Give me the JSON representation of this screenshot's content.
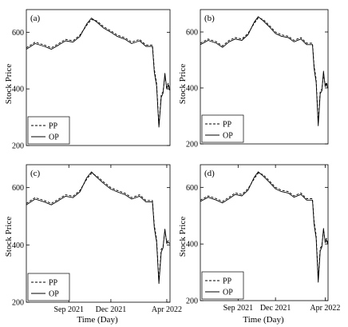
{
  "figure": {
    "ylabel": "Stock Price",
    "xlabel": "Time (Day)"
  },
  "chart_data": [
    {
      "panel": "(a)",
      "type": "line",
      "x_ticks": [],
      "y_ticks": [
        "200",
        "400",
        "600"
      ],
      "ylim": [
        200,
        680
      ],
      "legend": [
        "PP",
        "OP"
      ],
      "legend_position": "bottom-left",
      "series": [
        {
          "name": "PP",
          "style": "dashed",
          "x": [
            "2021-06-01",
            "2021-06-20",
            "2021-07-10",
            "2021-07-25",
            "2021-08-10",
            "2021-08-25",
            "2021-09-10",
            "2021-09-25",
            "2021-10-10",
            "2021-10-20",
            "2021-11-01",
            "2021-11-15",
            "2021-12-01",
            "2021-12-15",
            "2022-01-01",
            "2022-01-15",
            "2022-02-01",
            "2022-02-15",
            "2022-03-01",
            "2022-03-05",
            "2022-03-10",
            "2022-03-15",
            "2022-03-20",
            "2022-03-24",
            "2022-03-28",
            "2022-04-01",
            "2022-04-04",
            "2022-04-07"
          ],
          "y": [
            545,
            565,
            555,
            545,
            560,
            575,
            570,
            590,
            625,
            645,
            640,
            620,
            605,
            590,
            580,
            565,
            575,
            555,
            555,
            470,
            420,
            270,
            380,
            390,
            445,
            405,
            420,
            400
          ]
        },
        {
          "name": "OP",
          "style": "solid",
          "x": [
            "2021-06-01",
            "2021-06-20",
            "2021-07-10",
            "2021-07-25",
            "2021-08-10",
            "2021-08-25",
            "2021-09-10",
            "2021-09-25",
            "2021-10-10",
            "2021-10-20",
            "2021-11-01",
            "2021-11-15",
            "2021-12-01",
            "2021-12-15",
            "2022-01-01",
            "2022-01-15",
            "2022-02-01",
            "2022-02-15",
            "2022-03-01",
            "2022-03-05",
            "2022-03-10",
            "2022-03-15",
            "2022-03-20",
            "2022-03-24",
            "2022-03-28",
            "2022-04-01",
            "2022-04-04",
            "2022-04-07"
          ],
          "y": [
            540,
            560,
            550,
            540,
            555,
            570,
            565,
            585,
            630,
            650,
            635,
            615,
            600,
            585,
            575,
            560,
            570,
            550,
            550,
            460,
            410,
            265,
            370,
            385,
            455,
            400,
            415,
            395
          ]
        }
      ]
    },
    {
      "panel": "(b)",
      "type": "line",
      "x_ticks": [],
      "y_ticks": [
        "200",
        "400",
        "600"
      ],
      "ylim": [
        200,
        680
      ],
      "legend": [
        "PP",
        "OP"
      ],
      "legend_position": "bottom-left",
      "series": [
        {
          "name": "PP",
          "style": "dashed",
          "x": [
            "2021-06-01",
            "2021-06-20",
            "2021-07-10",
            "2021-07-25",
            "2021-08-10",
            "2021-08-25",
            "2021-09-10",
            "2021-09-25",
            "2021-10-10",
            "2021-10-20",
            "2021-11-01",
            "2021-11-15",
            "2021-12-01",
            "2021-12-15",
            "2022-01-01",
            "2022-01-15",
            "2022-02-01",
            "2022-02-15",
            "2022-03-01",
            "2022-03-05",
            "2022-03-10",
            "2022-03-15",
            "2022-03-20",
            "2022-03-24",
            "2022-03-28",
            "2022-04-01",
            "2022-04-04",
            "2022-04-07"
          ],
          "y": [
            560,
            575,
            565,
            550,
            570,
            580,
            575,
            595,
            630,
            650,
            645,
            625,
            600,
            590,
            585,
            570,
            580,
            560,
            560,
            480,
            430,
            275,
            390,
            395,
            450,
            410,
            420,
            405
          ]
        },
        {
          "name": "OP",
          "style": "solid",
          "x": [
            "2021-06-01",
            "2021-06-20",
            "2021-07-10",
            "2021-07-25",
            "2021-08-10",
            "2021-08-25",
            "2021-09-10",
            "2021-09-25",
            "2021-10-10",
            "2021-10-20",
            "2021-11-01",
            "2021-11-15",
            "2021-12-01",
            "2021-12-15",
            "2022-01-01",
            "2022-01-15",
            "2022-02-01",
            "2022-02-15",
            "2022-03-01",
            "2022-03-05",
            "2022-03-10",
            "2022-03-15",
            "2022-03-20",
            "2022-03-24",
            "2022-03-28",
            "2022-04-01",
            "2022-04-04",
            "2022-04-07"
          ],
          "y": [
            555,
            570,
            560,
            545,
            565,
            575,
            570,
            590,
            635,
            655,
            640,
            620,
            595,
            585,
            580,
            565,
            575,
            555,
            555,
            470,
            420,
            265,
            380,
            390,
            460,
            405,
            415,
            400
          ]
        }
      ]
    },
    {
      "panel": "(c)",
      "type": "line",
      "x_ticks": [
        "Sep 2021",
        "Dec 2021",
        "Apr 2022"
      ],
      "y_ticks": [
        "200",
        "400",
        "600"
      ],
      "ylim": [
        200,
        680
      ],
      "legend": [
        "PP",
        "OP"
      ],
      "legend_position": "bottom-left",
      "series": [
        {
          "name": "PP",
          "style": "dashed",
          "x": [
            "2021-06-01",
            "2021-06-20",
            "2021-07-10",
            "2021-07-25",
            "2021-08-10",
            "2021-08-25",
            "2021-09-10",
            "2021-09-25",
            "2021-10-10",
            "2021-10-20",
            "2021-11-01",
            "2021-11-15",
            "2021-12-01",
            "2021-12-15",
            "2022-01-01",
            "2022-01-15",
            "2022-02-01",
            "2022-02-15",
            "2022-03-01",
            "2022-03-05",
            "2022-03-10",
            "2022-03-15",
            "2022-03-20",
            "2022-03-24",
            "2022-03-28",
            "2022-04-01",
            "2022-04-04",
            "2022-04-07"
          ],
          "y": [
            545,
            565,
            555,
            545,
            560,
            575,
            570,
            590,
            630,
            650,
            640,
            620,
            600,
            590,
            580,
            565,
            575,
            555,
            555,
            470,
            420,
            275,
            385,
            395,
            450,
            410,
            415,
            410
          ]
        },
        {
          "name": "OP",
          "style": "solid",
          "x": [
            "2021-06-01",
            "2021-06-20",
            "2021-07-10",
            "2021-07-25",
            "2021-08-10",
            "2021-08-25",
            "2021-09-10",
            "2021-09-25",
            "2021-10-10",
            "2021-10-20",
            "2021-11-01",
            "2021-11-15",
            "2021-12-01",
            "2021-12-15",
            "2022-01-01",
            "2022-01-15",
            "2022-02-01",
            "2022-02-15",
            "2022-03-01",
            "2022-03-05",
            "2022-03-10",
            "2022-03-15",
            "2022-03-20",
            "2022-03-24",
            "2022-03-28",
            "2022-04-01",
            "2022-04-04",
            "2022-04-07"
          ],
          "y": [
            540,
            560,
            550,
            540,
            555,
            570,
            565,
            585,
            635,
            655,
            635,
            615,
            595,
            585,
            575,
            560,
            570,
            550,
            550,
            460,
            410,
            265,
            375,
            390,
            455,
            405,
            410,
            405
          ]
        }
      ]
    },
    {
      "panel": "(d)",
      "type": "line",
      "x_ticks": [
        "Sep 2021",
        "Dec 2021",
        "Apr 2022"
      ],
      "y_ticks": [
        "200",
        "400",
        "600"
      ],
      "ylim": [
        200,
        680
      ],
      "legend": [
        "PP",
        "OP"
      ],
      "legend_position": "bottom-left",
      "series": [
        {
          "name": "PP",
          "style": "dashed",
          "x": [
            "2021-06-01",
            "2021-06-20",
            "2021-07-10",
            "2021-07-25",
            "2021-08-10",
            "2021-08-25",
            "2021-09-10",
            "2021-09-25",
            "2021-10-10",
            "2021-10-20",
            "2021-11-01",
            "2021-11-15",
            "2021-12-01",
            "2021-12-15",
            "2022-01-01",
            "2022-01-15",
            "2022-02-01",
            "2022-02-15",
            "2022-03-01",
            "2022-03-05",
            "2022-03-10",
            "2022-03-15",
            "2022-03-20",
            "2022-03-24",
            "2022-03-28",
            "2022-04-01",
            "2022-04-04",
            "2022-04-07"
          ],
          "y": [
            555,
            570,
            560,
            550,
            565,
            580,
            575,
            595,
            630,
            650,
            645,
            625,
            600,
            590,
            585,
            570,
            580,
            560,
            560,
            480,
            430,
            280,
            385,
            395,
            450,
            410,
            420,
            405
          ]
        },
        {
          "name": "OP",
          "style": "solid",
          "x": [
            "2021-06-01",
            "2021-06-20",
            "2021-07-10",
            "2021-07-25",
            "2021-08-10",
            "2021-08-25",
            "2021-09-10",
            "2021-09-25",
            "2021-10-10",
            "2021-10-20",
            "2021-11-01",
            "2021-11-15",
            "2021-12-01",
            "2021-12-15",
            "2022-01-01",
            "2022-01-15",
            "2022-02-01",
            "2022-02-15",
            "2022-03-01",
            "2022-03-05",
            "2022-03-10",
            "2022-03-15",
            "2022-03-20",
            "2022-03-24",
            "2022-03-28",
            "2022-04-01",
            "2022-04-04",
            "2022-04-07"
          ],
          "y": [
            550,
            565,
            555,
            545,
            560,
            575,
            570,
            590,
            635,
            655,
            640,
            620,
            595,
            585,
            580,
            565,
            575,
            555,
            555,
            470,
            420,
            265,
            375,
            390,
            455,
            405,
            415,
            400
          ]
        }
      ]
    }
  ]
}
